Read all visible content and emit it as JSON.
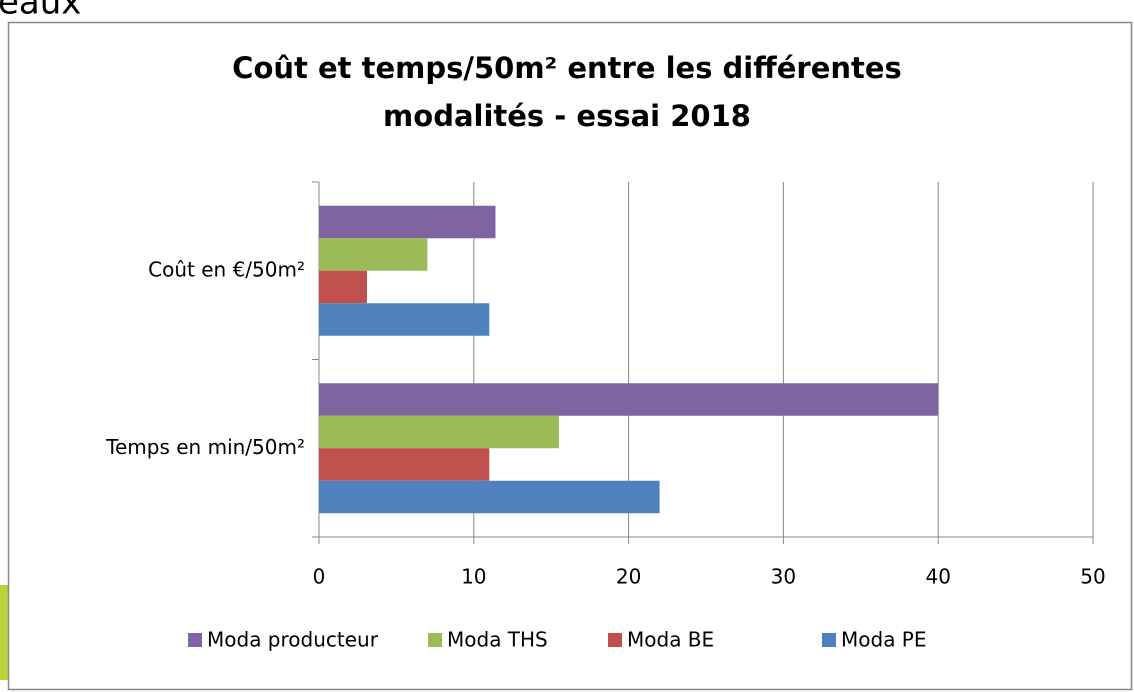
{
  "page_fragment": "eaux",
  "chart_data": {
    "type": "bar",
    "orientation": "horizontal",
    "title": [
      "Coût et temps/50m² entre les différentes",
      "modalités - essai 2018"
    ],
    "categories": [
      "Coût en €/50m²",
      "Temps en min/50m²"
    ],
    "series": [
      {
        "name": "Moda producteur",
        "color": "#8064a2",
        "values": [
          11.4,
          40
        ]
      },
      {
        "name": "Moda THS",
        "color": "#9bbb59",
        "values": [
          7,
          15.5
        ]
      },
      {
        "name": "Moda BE",
        "color": "#c0504d",
        "values": [
          3.1,
          11
        ]
      },
      {
        "name": "Moda PE",
        "color": "#4f81bd",
        "values": [
          11,
          22
        ]
      }
    ],
    "xlim": [
      0,
      50
    ],
    "xticks": [
      0,
      10,
      20,
      30,
      40,
      50
    ],
    "grid": true,
    "legend": "bottom"
  }
}
